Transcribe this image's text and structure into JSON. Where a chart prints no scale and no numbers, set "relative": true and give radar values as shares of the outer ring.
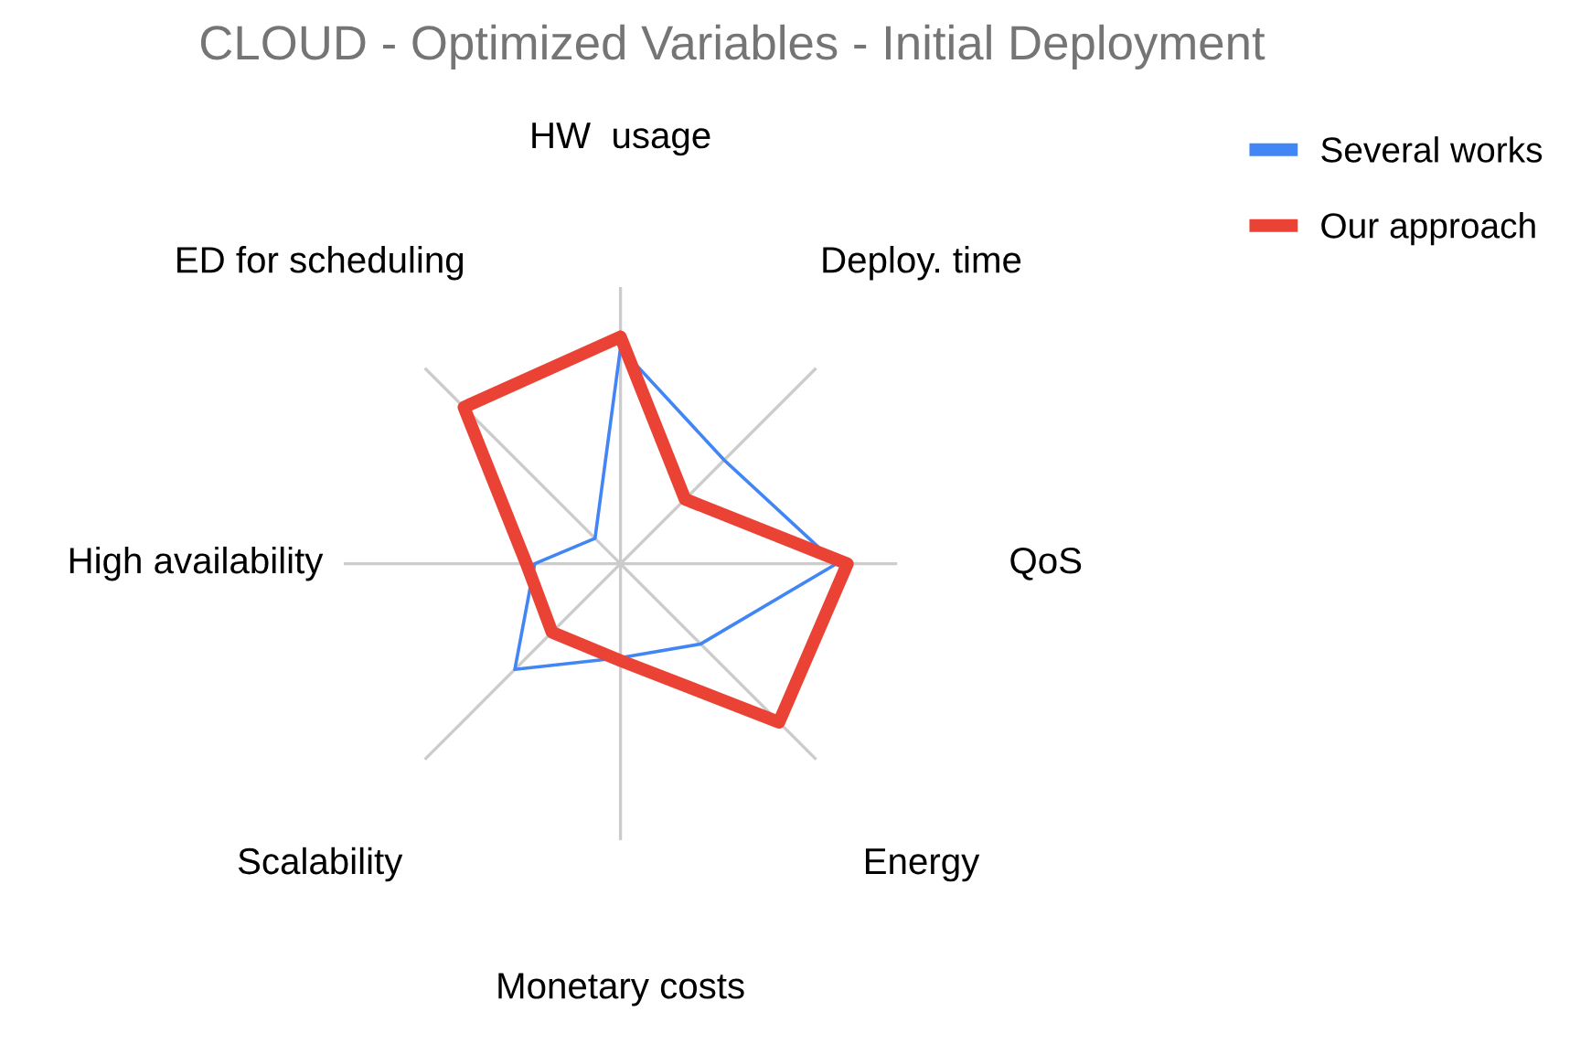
{
  "chart_data": {
    "type": "radar",
    "title": "CLOUD - Optimized Variables - Initial Deployment",
    "categories": [
      "HW  usage",
      "Deploy. time",
      "QoS",
      "Energy",
      "Monetary costs",
      "Scalability",
      "High availability",
      "ED for scheduling"
    ],
    "relative": true,
    "grid": true,
    "legend": "top right",
    "series": [
      {
        "name": "Several works",
        "color": "#4285f4",
        "values": [
          0.78,
          0.53,
          0.78,
          0.41,
          0.34,
          0.54,
          0.31,
          0.13
        ]
      },
      {
        "name": "Our approach",
        "color": "#ea4335",
        "values": [
          0.82,
          0.33,
          0.82,
          0.81,
          0.35,
          0.35,
          0.34,
          0.8
        ]
      }
    ]
  }
}
